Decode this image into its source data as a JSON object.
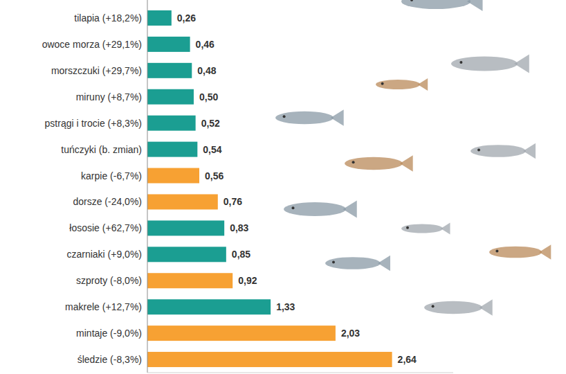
{
  "chart_data": {
    "type": "bar",
    "orientation": "horizontal",
    "categories": [
      "tilapia (+18,2%)",
      "owoce morza (+29,1%)",
      "morszczuki (+29,7%)",
      "miruny (+8,7%)",
      "pstrągi i trocie (+8,3%)",
      "tuńczyki (b. zmian)",
      "karpie (-6,7%)",
      "dorsze (-24,0%)",
      "łososie (+62,7%)",
      "czarniaki (+9,0%)",
      "szproty (-8,0%)",
      "makrele (+12,7%)",
      "mintaje (-9,0%)",
      "śledzie (-8,3%)"
    ],
    "values": [
      0.26,
      0.46,
      0.48,
      0.5,
      0.52,
      0.54,
      0.56,
      0.76,
      0.83,
      0.85,
      0.92,
      1.33,
      2.03,
      2.64
    ],
    "value_labels": [
      "0,26",
      "0,46",
      "0,48",
      "0,50",
      "0,52",
      "0,54",
      "0,56",
      "0,76",
      "0,83",
      "0,85",
      "0,92",
      "1,33",
      "2,03",
      "2,64"
    ],
    "colors": [
      "#1b9e92",
      "#1b9e92",
      "#1b9e92",
      "#1b9e92",
      "#1b9e92",
      "#1b9e92",
      "#f7a133",
      "#f7a133",
      "#1b9e92",
      "#1b9e92",
      "#f7a133",
      "#1b9e92",
      "#f7a133",
      "#f7a133"
    ],
    "xlim": [
      0,
      3.3
    ],
    "data_labels": true,
    "tick_labels": "y",
    "grid": false
  }
}
